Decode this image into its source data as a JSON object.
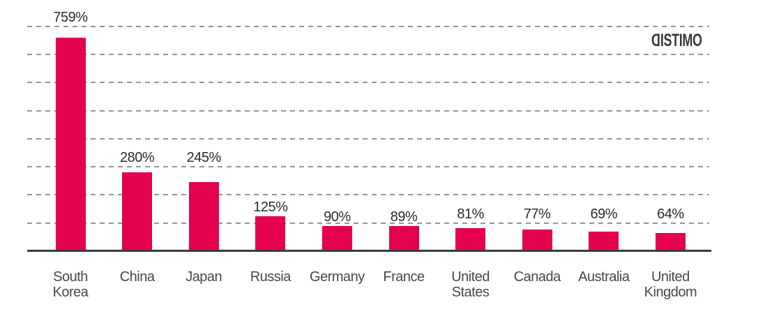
{
  "logo": {
    "text": "DISTIMO",
    "color": "#383838"
  },
  "chart_data": {
    "type": "bar",
    "title": "",
    "xlabel": "",
    "ylabel": "",
    "categories": [
      "South Korea",
      "China",
      "Japan",
      "Russia",
      "Germany",
      "France",
      "United States",
      "Canada",
      "Australia",
      "United Kingdom"
    ],
    "values": [
      759,
      280,
      245,
      125,
      90,
      89,
      81,
      77,
      69,
      64
    ],
    "value_labels": [
      "759%",
      "280%",
      "245%",
      "125%",
      "90%",
      "89%",
      "81%",
      "77%",
      "69%",
      "64%"
    ],
    "unit": "%",
    "ylim": [
      0,
      800
    ],
    "gridlines": {
      "visible": true,
      "style": "dashed",
      "interval": 100,
      "count": 8,
      "color": "#949494"
    },
    "bar_color": "#e4024e",
    "axis_color": "#3b3b3b",
    "legend": "none"
  }
}
